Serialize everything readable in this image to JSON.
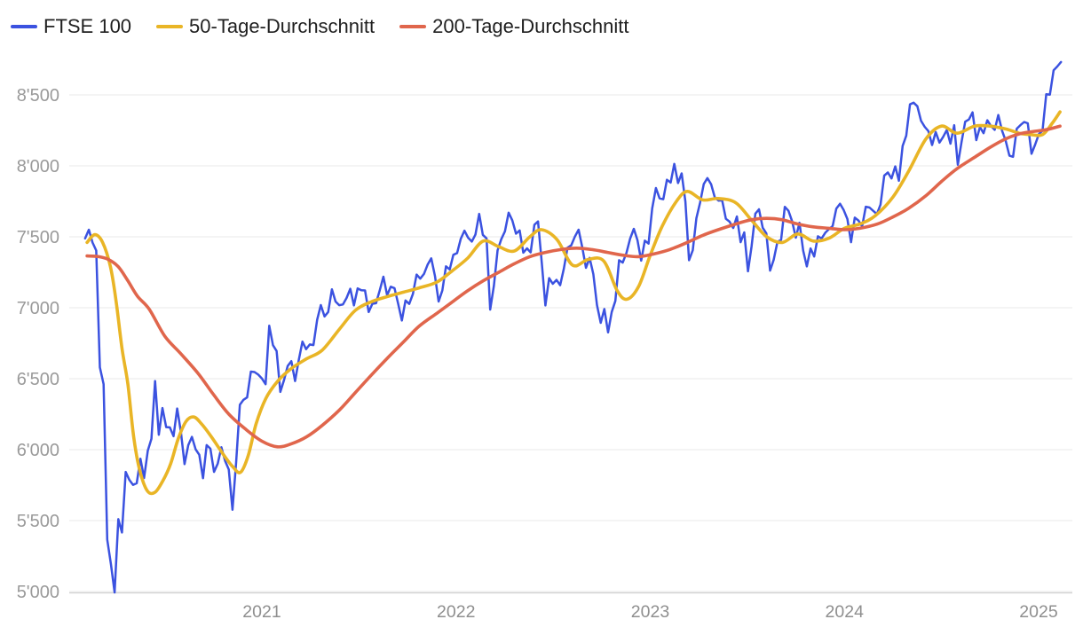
{
  "legend": {
    "items": [
      {
        "label": "FTSE 100",
        "color": "#3b52e0"
      },
      {
        "label": "50-Tage-Durchschnitt",
        "color": "#e9b526"
      },
      {
        "label": "200-Tage-Durchschnitt",
        "color": "#e0664c"
      }
    ]
  },
  "chart_data": {
    "type": "line",
    "title": "",
    "legend_position": "top-left",
    "grid": "horizontal",
    "background": "#ffffff",
    "gridline_color": "#e8e8e8",
    "axisline_color": "#cfcfcf",
    "x_axis": {
      "label": "",
      "ticks": [
        2021,
        2022,
        2023,
        2024,
        2025
      ],
      "tick_labels": [
        "2021",
        "2022",
        "2023",
        "2024",
        "2025"
      ],
      "min": 2020.01,
      "max": 2025.17
    },
    "y_axis": {
      "label": "",
      "ticks": [
        5000,
        5500,
        6000,
        6500,
        7000,
        7500,
        8000,
        8500
      ],
      "tick_labels": [
        "5'000",
        "5'500",
        "6'000",
        "6'500",
        "7'000",
        "7'500",
        "8'000",
        "8'500"
      ],
      "min": 5000,
      "max": 8500
    },
    "series": [
      {
        "name": "FTSE 100",
        "color": "#3b52e0",
        "width": 2.5,
        "smooth": false,
        "x_range": [
          2020.09,
          2025.115
        ],
        "values": [
          7489,
          7550,
          7460,
          7403,
          6580,
          6462,
          5366,
          5191,
          4994,
          5510,
          5416,
          5843,
          5787,
          5752,
          5763,
          5936,
          5800,
          5993,
          6077,
          6484,
          6105,
          6293,
          6159,
          6157,
          6095,
          6290,
          6124,
          5898,
          6032,
          6090,
          6002,
          5964,
          5799,
          6032,
          6007,
          5843,
          5902,
          6017,
          5920,
          5860,
          5577,
          5910,
          6316,
          6351,
          6368,
          6550,
          6547,
          6529,
          6502,
          6461,
          6873,
          6736,
          6695,
          6407,
          6489,
          6590,
          6624,
          6483,
          6630,
          6761,
          6708,
          6741,
          6737,
          6916,
          7019,
          6939,
          6970,
          7130,
          7044,
          7018,
          7023,
          7069,
          7134,
          7017,
          7136,
          7123,
          7122,
          6970,
          7028,
          7032,
          7123,
          7219,
          7088,
          7148,
          7138,
          7029,
          6910,
          7051,
          7027,
          7096,
          7234,
          7205,
          7238,
          7304,
          7348,
          7224,
          7044,
          7122,
          7292,
          7270,
          7373,
          7385,
          7485,
          7543,
          7494,
          7466,
          7516,
          7661,
          7514,
          7489,
          6987,
          7156,
          7404,
          7483,
          7538,
          7670,
          7616,
          7522,
          7545,
          7388,
          7418,
          7390,
          7585,
          7608,
          7318,
          7016,
          7209,
          7169,
          7196,
          7159,
          7276,
          7423,
          7440,
          7501,
          7550,
          7427,
          7281,
          7351,
          7237,
          7019,
          6894,
          6991,
          6826,
          6970,
          7048,
          7335,
          7318,
          7386,
          7486,
          7556,
          7476,
          7332,
          7473,
          7452,
          7700,
          7844,
          7771,
          7765,
          7902,
          7882,
          8014,
          7879,
          7947,
          7748,
          7335,
          7405,
          7632,
          7742,
          7872,
          7914,
          7870,
          7778,
          7755,
          7757,
          7627,
          7607,
          7562,
          7643,
          7462,
          7531,
          7257,
          7435,
          7663,
          7694,
          7564,
          7524,
          7262,
          7339,
          7465,
          7478,
          7711,
          7683,
          7608,
          7494,
          7599,
          7402,
          7291,
          7418,
          7361,
          7504,
          7488,
          7529,
          7554,
          7576,
          7698,
          7733,
          7689,
          7625,
          7462,
          7635,
          7615,
          7573,
          7712,
          7706,
          7683,
          7660,
          7727,
          7931,
          7953,
          7911,
          7996,
          7895,
          8140,
          8213,
          8434,
          8445,
          8420,
          8318,
          8275,
          8245,
          8147,
          8238,
          8164,
          8204,
          8253,
          8156,
          8286,
          8008,
          8168,
          8311,
          8327,
          8377,
          8181,
          8273,
          8230,
          8321,
          8281,
          8254,
          8358,
          8248,
          8177,
          8072,
          8064,
          8262,
          8287,
          8309,
          8300,
          8085,
          8150,
          8224,
          8248,
          8505,
          8502,
          8674,
          8700,
          8732
        ]
      },
      {
        "name": "50-Tage-Durchschnitt",
        "color": "#e9b526",
        "width": 3.6,
        "smooth": true,
        "points": [
          [
            2020.1,
            7460
          ],
          [
            2020.14,
            7515
          ],
          [
            2020.18,
            7460
          ],
          [
            2020.22,
            7290
          ],
          [
            2020.25,
            7040
          ],
          [
            2020.28,
            6710
          ],
          [
            2020.31,
            6460
          ],
          [
            2020.34,
            6090
          ],
          [
            2020.37,
            5860
          ],
          [
            2020.41,
            5710
          ],
          [
            2020.45,
            5700
          ],
          [
            2020.49,
            5780
          ],
          [
            2020.53,
            5900
          ],
          [
            2020.57,
            6080
          ],
          [
            2020.61,
            6200
          ],
          [
            2020.65,
            6230
          ],
          [
            2020.69,
            6180
          ],
          [
            2020.73,
            6110
          ],
          [
            2020.77,
            6030
          ],
          [
            2020.81,
            5950
          ],
          [
            2020.85,
            5880
          ],
          [
            2020.89,
            5840
          ],
          [
            2020.93,
            5960
          ],
          [
            2020.97,
            6180
          ],
          [
            2021.02,
            6360
          ],
          [
            2021.08,
            6480
          ],
          [
            2021.15,
            6570
          ],
          [
            2021.23,
            6640
          ],
          [
            2021.31,
            6700
          ],
          [
            2021.4,
            6850
          ],
          [
            2021.48,
            6980
          ],
          [
            2021.56,
            7040
          ],
          [
            2021.65,
            7080
          ],
          [
            2021.73,
            7110
          ],
          [
            2021.81,
            7140
          ],
          [
            2021.9,
            7180
          ],
          [
            2021.98,
            7260
          ],
          [
            2022.06,
            7350
          ],
          [
            2022.14,
            7470
          ],
          [
            2022.22,
            7430
          ],
          [
            2022.3,
            7400
          ],
          [
            2022.38,
            7500
          ],
          [
            2022.44,
            7550
          ],
          [
            2022.52,
            7480
          ],
          [
            2022.6,
            7300
          ],
          [
            2022.68,
            7340
          ],
          [
            2022.76,
            7330
          ],
          [
            2022.83,
            7120
          ],
          [
            2022.88,
            7060
          ],
          [
            2022.94,
            7150
          ],
          [
            2023.0,
            7370
          ],
          [
            2023.06,
            7570
          ],
          [
            2023.13,
            7740
          ],
          [
            2023.19,
            7820
          ],
          [
            2023.27,
            7760
          ],
          [
            2023.35,
            7770
          ],
          [
            2023.44,
            7740
          ],
          [
            2023.52,
            7620
          ],
          [
            2023.6,
            7500
          ],
          [
            2023.68,
            7460
          ],
          [
            2023.76,
            7520
          ],
          [
            2023.84,
            7470
          ],
          [
            2023.92,
            7490
          ],
          [
            2024.0,
            7560
          ],
          [
            2024.08,
            7590
          ],
          [
            2024.16,
            7650
          ],
          [
            2024.25,
            7780
          ],
          [
            2024.33,
            7960
          ],
          [
            2024.42,
            8190
          ],
          [
            2024.5,
            8280
          ],
          [
            2024.58,
            8230
          ],
          [
            2024.67,
            8280
          ],
          [
            2024.75,
            8280
          ],
          [
            2024.83,
            8260
          ],
          [
            2024.9,
            8230
          ],
          [
            2024.96,
            8220
          ],
          [
            2025.02,
            8220
          ],
          [
            2025.07,
            8300
          ],
          [
            2025.11,
            8380
          ]
        ]
      },
      {
        "name": "200-Tage-Durchschnitt",
        "color": "#e0664c",
        "width": 3.6,
        "smooth": true,
        "points": [
          [
            2020.1,
            7365
          ],
          [
            2020.16,
            7360
          ],
          [
            2020.21,
            7340
          ],
          [
            2020.26,
            7290
          ],
          [
            2020.31,
            7190
          ],
          [
            2020.36,
            7080
          ],
          [
            2020.42,
            6990
          ],
          [
            2020.5,
            6800
          ],
          [
            2020.58,
            6680
          ],
          [
            2020.67,
            6540
          ],
          [
            2020.75,
            6390
          ],
          [
            2020.83,
            6250
          ],
          [
            2020.92,
            6140
          ],
          [
            2021.0,
            6060
          ],
          [
            2021.08,
            6020
          ],
          [
            2021.15,
            6040
          ],
          [
            2021.23,
            6090
          ],
          [
            2021.31,
            6170
          ],
          [
            2021.4,
            6280
          ],
          [
            2021.48,
            6400
          ],
          [
            2021.56,
            6520
          ],
          [
            2021.65,
            6650
          ],
          [
            2021.73,
            6760
          ],
          [
            2021.81,
            6870
          ],
          [
            2021.9,
            6960
          ],
          [
            2021.98,
            7040
          ],
          [
            2022.06,
            7120
          ],
          [
            2022.14,
            7190
          ],
          [
            2022.22,
            7250
          ],
          [
            2022.3,
            7310
          ],
          [
            2022.38,
            7360
          ],
          [
            2022.46,
            7390
          ],
          [
            2022.54,
            7410
          ],
          [
            2022.62,
            7420
          ],
          [
            2022.7,
            7410
          ],
          [
            2022.78,
            7390
          ],
          [
            2022.86,
            7370
          ],
          [
            2022.94,
            7360
          ],
          [
            2023.02,
            7380
          ],
          [
            2023.1,
            7410
          ],
          [
            2023.19,
            7460
          ],
          [
            2023.27,
            7510
          ],
          [
            2023.35,
            7550
          ],
          [
            2023.44,
            7590
          ],
          [
            2023.52,
            7620
          ],
          [
            2023.6,
            7630
          ],
          [
            2023.68,
            7620
          ],
          [
            2023.76,
            7590
          ],
          [
            2023.84,
            7570
          ],
          [
            2023.92,
            7560
          ],
          [
            2024.0,
            7550
          ],
          [
            2024.08,
            7560
          ],
          [
            2024.17,
            7590
          ],
          [
            2024.25,
            7640
          ],
          [
            2024.33,
            7700
          ],
          [
            2024.42,
            7790
          ],
          [
            2024.5,
            7890
          ],
          [
            2024.58,
            7980
          ],
          [
            2024.67,
            8060
          ],
          [
            2024.75,
            8130
          ],
          [
            2024.83,
            8190
          ],
          [
            2024.9,
            8225
          ],
          [
            2024.96,
            8240
          ],
          [
            2025.04,
            8255
          ],
          [
            2025.11,
            8280
          ]
        ]
      }
    ]
  }
}
